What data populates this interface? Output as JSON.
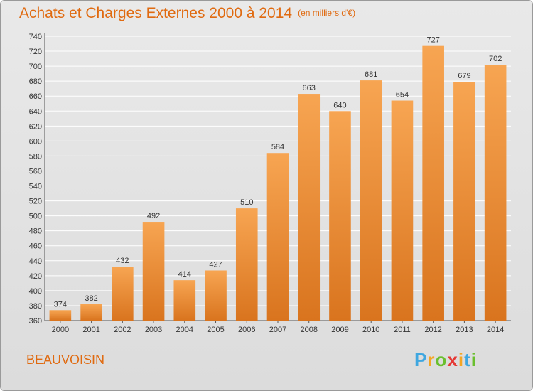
{
  "title": "Achats et Charges Externes 2000 à 2014",
  "subtitle": "(en milliers d'€)",
  "commune": "BEAUVOISIN",
  "logo": {
    "text": "Proxiti",
    "letters": [
      {
        "ch": "P",
        "color": "#3fa7e0"
      },
      {
        "ch": "r",
        "color": "#f5a623"
      },
      {
        "ch": "o",
        "color": "#6abf2e"
      },
      {
        "ch": "x",
        "color": "#e53935"
      },
      {
        "ch": "i",
        "color": "#f5a623"
      },
      {
        "ch": "t",
        "color": "#3fa7e0"
      },
      {
        "ch": "i",
        "color": "#6abf2e"
      }
    ]
  },
  "colors": {
    "accent": "#e06a10",
    "bar_top": "#f7a552",
    "bar_bottom": "#d9741e"
  },
  "chart_data": {
    "type": "bar",
    "title": "Achats et Charges Externes 2000 à 2014",
    "subtitle": "(en milliers d'€)",
    "categories": [
      "2000",
      "2001",
      "2002",
      "2003",
      "2004",
      "2005",
      "2006",
      "2007",
      "2008",
      "2009",
      "2010",
      "2011",
      "2012",
      "2013",
      "2014"
    ],
    "values": [
      374,
      382,
      432,
      492,
      414,
      427,
      510,
      584,
      663,
      640,
      681,
      654,
      727,
      679,
      702
    ],
    "ylim": [
      360,
      740
    ],
    "ytick_step": 20,
    "grid": true,
    "xlabel": "",
    "ylabel": ""
  }
}
